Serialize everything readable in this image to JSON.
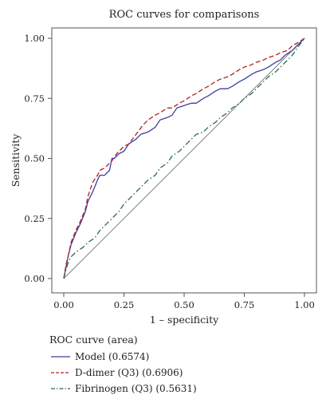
{
  "chart_data": {
    "type": "line",
    "title": "ROC curves for comparisons",
    "xlabel": "1 – specificity",
    "ylabel": "Sensitivity",
    "xlim": [
      0,
      1
    ],
    "ylim": [
      0,
      1
    ],
    "xticks": [
      "0.00",
      "0.25",
      "0.50",
      "0.75",
      "1.00"
    ],
    "yticks": [
      "0.00",
      "0.25",
      "0.50",
      "0.75",
      "1.00"
    ],
    "grid": false,
    "legend": {
      "title": "ROC curve (area)",
      "position": "bottom"
    },
    "reference_line": {
      "x": [
        0,
        1
      ],
      "y": [
        0,
        1
      ],
      "color": "#808080"
    },
    "series": [
      {
        "name": "Model (0.6574)",
        "color": "#3b3fa0",
        "dash": "solid",
        "x": [
          0,
          0.01,
          0.02,
          0.03,
          0.05,
          0.07,
          0.09,
          0.1,
          0.12,
          0.14,
          0.15,
          0.17,
          0.19,
          0.2,
          0.21,
          0.23,
          0.25,
          0.27,
          0.3,
          0.32,
          0.35,
          0.38,
          0.4,
          0.43,
          0.45,
          0.47,
          0.5,
          0.53,
          0.55,
          0.58,
          0.6,
          0.63,
          0.65,
          0.68,
          0.7,
          0.73,
          0.75,
          0.78,
          0.8,
          0.83,
          0.85,
          0.88,
          0.9,
          0.92,
          0.95,
          0.97,
          1.0
        ],
        "y": [
          0,
          0.05,
          0.1,
          0.14,
          0.19,
          0.23,
          0.28,
          0.32,
          0.36,
          0.41,
          0.43,
          0.43,
          0.45,
          0.5,
          0.5,
          0.52,
          0.53,
          0.56,
          0.58,
          0.6,
          0.61,
          0.63,
          0.66,
          0.67,
          0.68,
          0.71,
          0.72,
          0.73,
          0.73,
          0.75,
          0.76,
          0.78,
          0.79,
          0.79,
          0.8,
          0.82,
          0.83,
          0.85,
          0.86,
          0.87,
          0.88,
          0.9,
          0.91,
          0.93,
          0.95,
          0.97,
          1.0
        ]
      },
      {
        "name": "D-dimer (Q3) (0.6906)",
        "color": "#b22222",
        "dash": "dashed",
        "x": [
          0,
          0.01,
          0.02,
          0.03,
          0.05,
          0.07,
          0.09,
          0.1,
          0.12,
          0.14,
          0.15,
          0.17,
          0.2,
          0.22,
          0.25,
          0.27,
          0.3,
          0.33,
          0.35,
          0.38,
          0.4,
          0.43,
          0.45,
          0.48,
          0.5,
          0.53,
          0.55,
          0.58,
          0.6,
          0.63,
          0.65,
          0.68,
          0.7,
          0.73,
          0.75,
          0.78,
          0.8,
          0.83,
          0.85,
          0.88,
          0.9,
          0.93,
          0.95,
          0.97,
          1.0
        ],
        "y": [
          0,
          0.06,
          0.1,
          0.15,
          0.2,
          0.24,
          0.29,
          0.34,
          0.4,
          0.43,
          0.45,
          0.46,
          0.49,
          0.52,
          0.55,
          0.56,
          0.6,
          0.64,
          0.66,
          0.68,
          0.69,
          0.71,
          0.71,
          0.73,
          0.74,
          0.76,
          0.77,
          0.79,
          0.8,
          0.82,
          0.83,
          0.84,
          0.85,
          0.87,
          0.88,
          0.89,
          0.9,
          0.91,
          0.92,
          0.93,
          0.94,
          0.95,
          0.97,
          0.98,
          1.0
        ]
      },
      {
        "name": "Fibrinogen (Q3) (0.5631)",
        "color": "#2f6b4f",
        "dash": "dashdot",
        "x": [
          0,
          0.01,
          0.02,
          0.03,
          0.05,
          0.08,
          0.1,
          0.13,
          0.15,
          0.18,
          0.2,
          0.23,
          0.25,
          0.28,
          0.3,
          0.33,
          0.35,
          0.38,
          0.4,
          0.43,
          0.45,
          0.48,
          0.5,
          0.53,
          0.55,
          0.58,
          0.6,
          0.63,
          0.65,
          0.68,
          0.7,
          0.73,
          0.75,
          0.78,
          0.8,
          0.83,
          0.85,
          0.88,
          0.9,
          0.93,
          0.95,
          0.97,
          1.0
        ],
        "y": [
          0,
          0.04,
          0.07,
          0.09,
          0.11,
          0.13,
          0.15,
          0.17,
          0.2,
          0.23,
          0.25,
          0.28,
          0.31,
          0.34,
          0.36,
          0.39,
          0.41,
          0.43,
          0.46,
          0.48,
          0.51,
          0.53,
          0.55,
          0.58,
          0.6,
          0.61,
          0.63,
          0.65,
          0.67,
          0.69,
          0.71,
          0.73,
          0.75,
          0.77,
          0.79,
          0.82,
          0.84,
          0.86,
          0.88,
          0.91,
          0.93,
          0.96,
          1.0
        ]
      }
    ]
  }
}
